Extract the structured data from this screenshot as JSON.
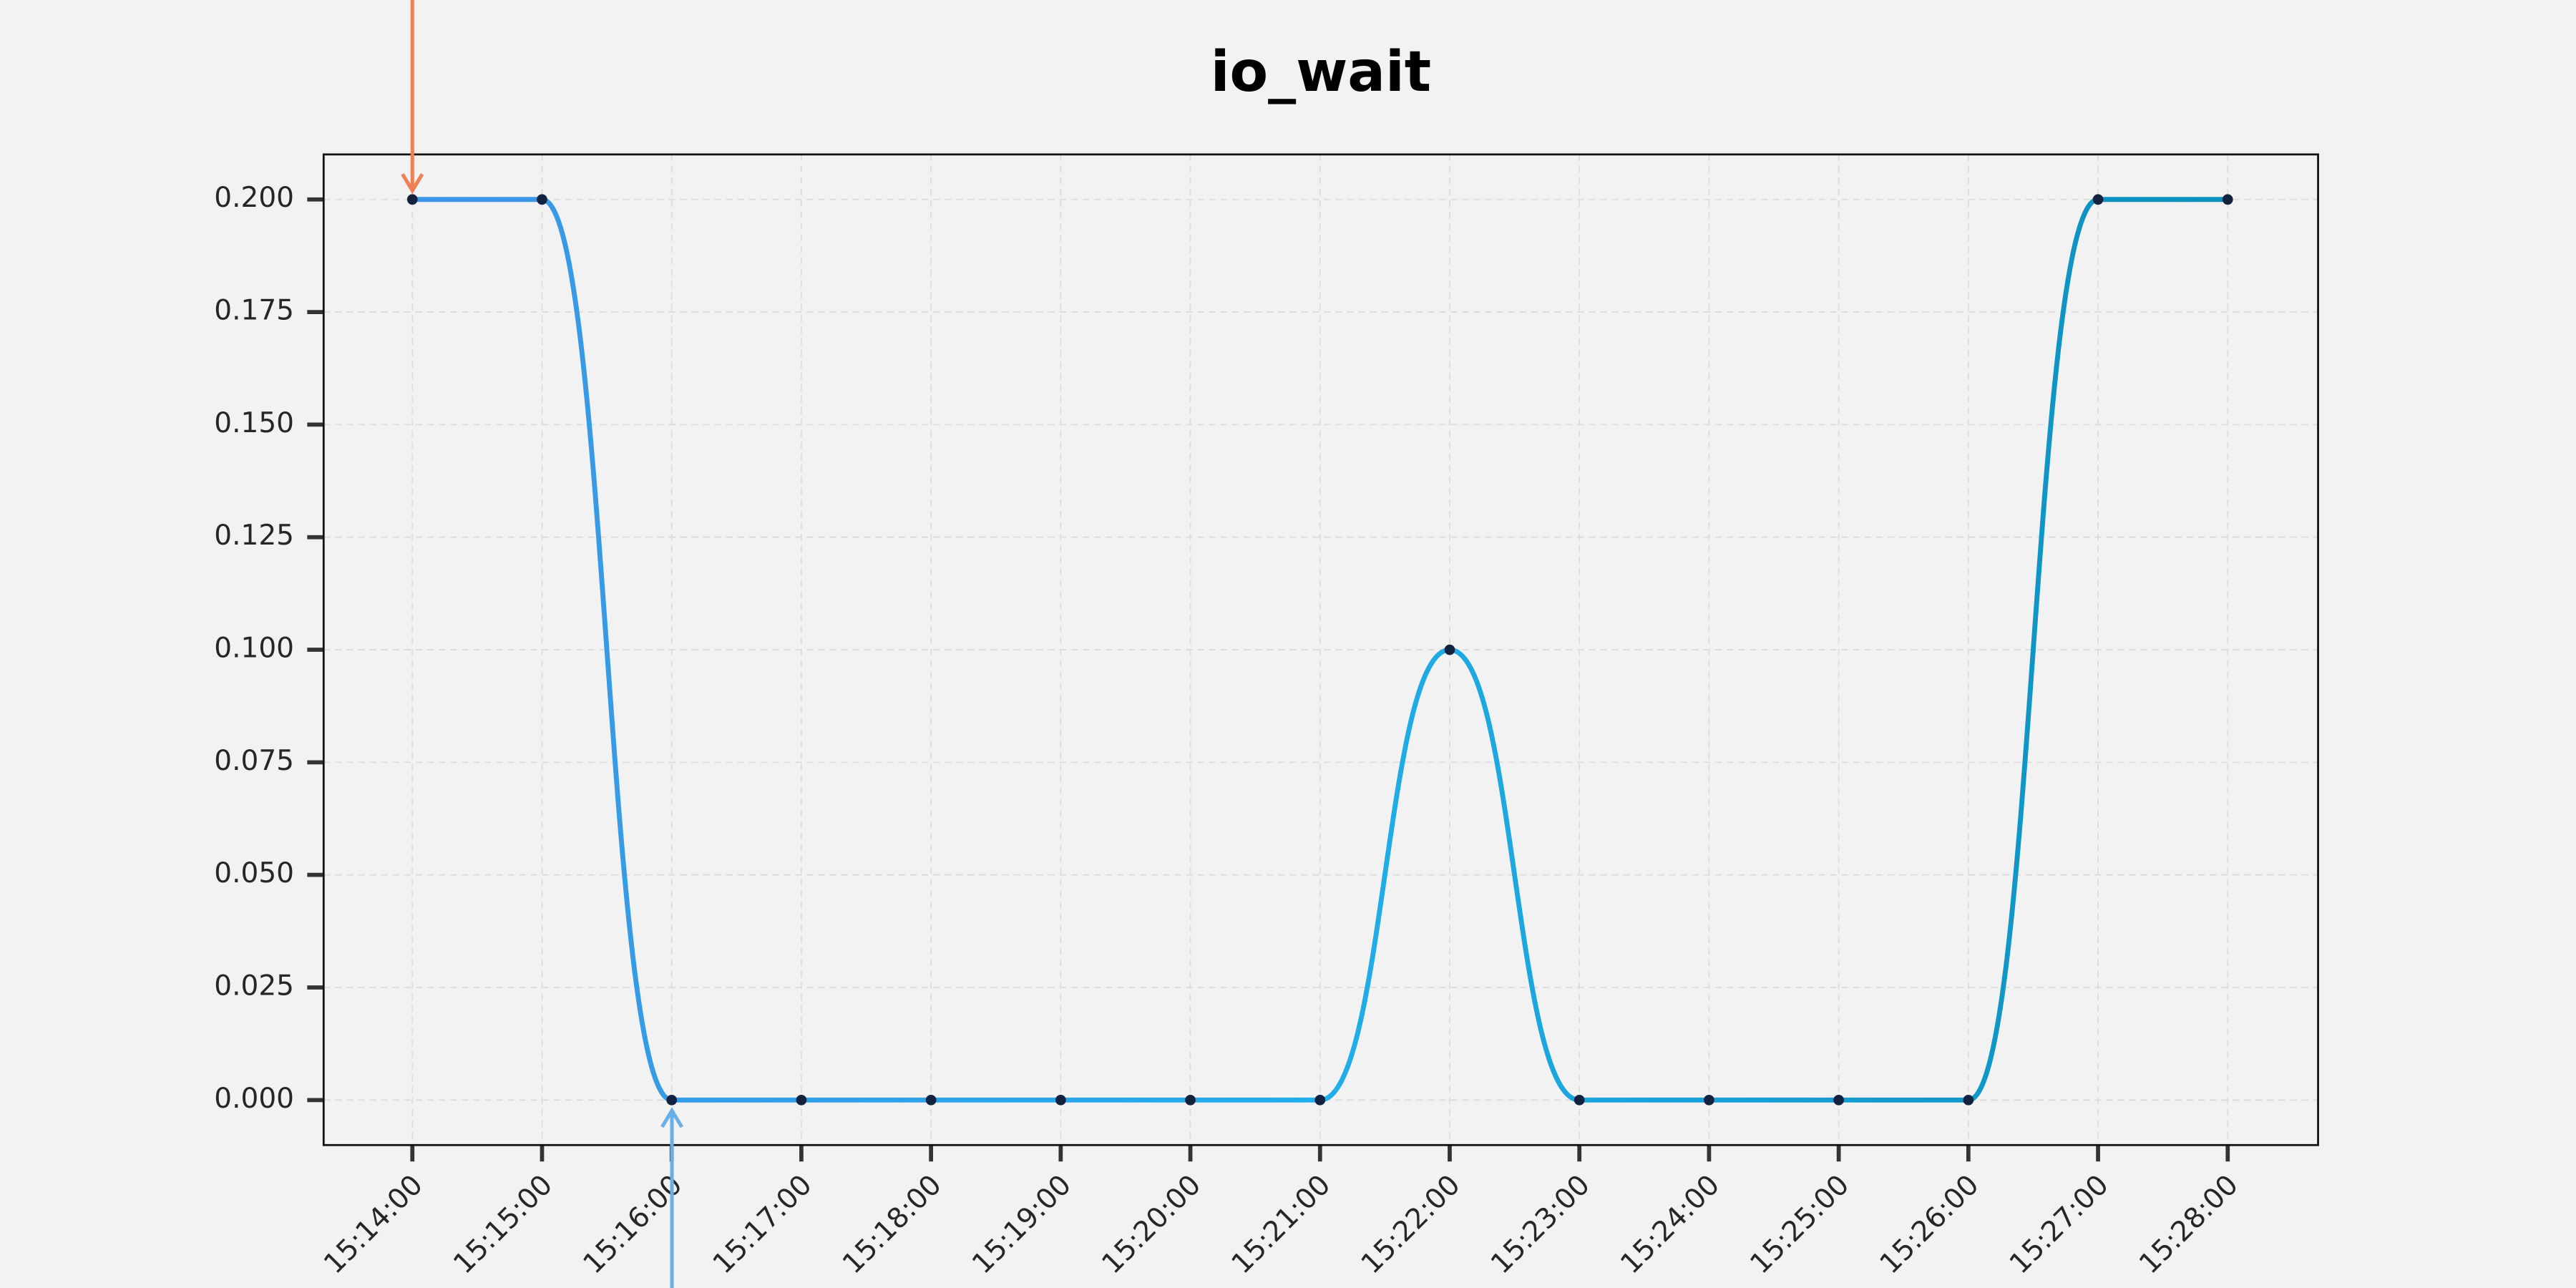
{
  "chart_data": {
    "type": "line",
    "title": "io_wait",
    "categories": [
      "15:14:00",
      "15:15:00",
      "15:16:00",
      "15:17:00",
      "15:18:00",
      "15:19:00",
      "15:20:00",
      "15:21:00",
      "15:22:00",
      "15:23:00",
      "15:24:00",
      "15:25:00",
      "15:26:00",
      "15:27:00",
      "15:28:00"
    ],
    "series": [
      {
        "name": "io_wait",
        "color": [
          "#3d95e5",
          "#22aeea",
          "#0a8fbd"
        ],
        "values": [
          0.2,
          0.2,
          0,
          0,
          0,
          0,
          0,
          0,
          0.1,
          0,
          0,
          0,
          0,
          0.2,
          0.2
        ]
      }
    ],
    "ylim": [
      -0.01,
      0.21
    ],
    "yticks": [
      {
        "value": 0,
        "label": "0.000"
      },
      {
        "value": 0.025,
        "label": "0.025"
      },
      {
        "value": 0.05,
        "label": "0.050"
      },
      {
        "value": 0.075,
        "label": "0.075"
      },
      {
        "value": 0.1,
        "label": "0.100"
      },
      {
        "value": 0.125,
        "label": "0.125"
      },
      {
        "value": 0.15,
        "label": "0.150"
      },
      {
        "value": 0.175,
        "label": "0.175"
      },
      {
        "value": 0.2,
        "label": "0.200"
      }
    ],
    "grid": true
  }
}
